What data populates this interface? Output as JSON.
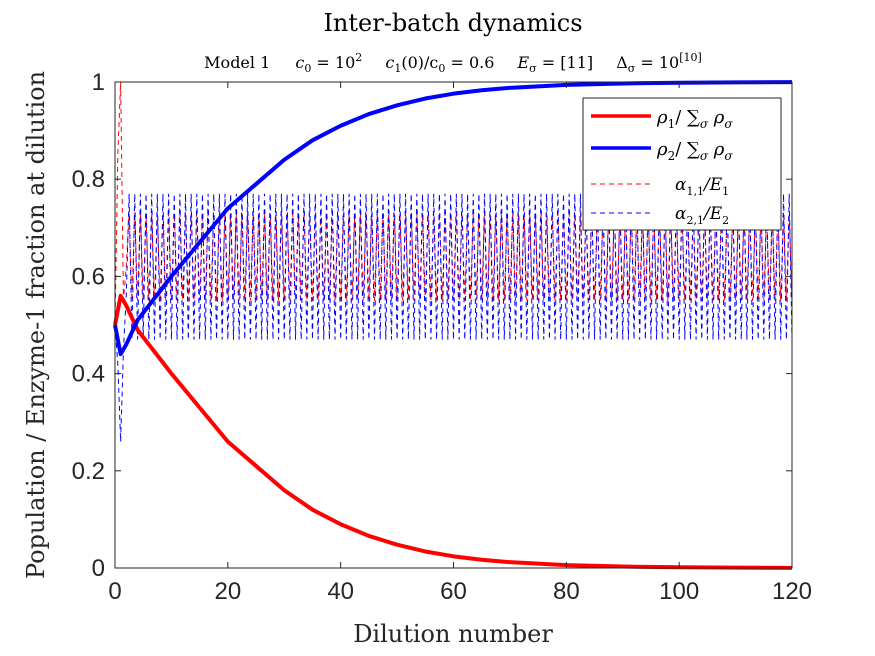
{
  "chart_data": {
    "type": "line",
    "title": "Inter-batch dynamics",
    "subtitle": {
      "model": "Model 1",
      "c0_label": "c",
      "c0_sub": "0",
      "c0_eq": " = 10",
      "c0_exp": "2",
      "c1_label": "c",
      "c1_sub": "1",
      "c1_mid": "(0)/c",
      "c1_sub2": "0",
      "c1_eq": " = 0.6",
      "E_label": "E",
      "E_sub": "σ",
      "E_eq": " = [11]",
      "D_label": "Δ",
      "D_sub": "σ",
      "D_eq": " = 10",
      "D_exp": "[10]"
    },
    "xlabel": "Dilution number",
    "ylabel": "Population / Enzyme-1 fraction at dilution",
    "xlim": [
      0,
      120
    ],
    "ylim": [
      0,
      1
    ],
    "xticks": [
      0,
      20,
      40,
      60,
      80,
      100,
      120
    ],
    "xtick_labels": [
      "0",
      "20",
      "40",
      "60",
      "80",
      "100",
      "120"
    ],
    "yticks": [
      0,
      0.2,
      0.4,
      0.6,
      0.8,
      1
    ],
    "ytick_labels": [
      "0",
      "0.2",
      "0.4",
      "0.6",
      "0.8",
      "1"
    ],
    "grid": false,
    "legend_position": "top-right",
    "series": [
      {
        "legend": {
          "a": "ρ",
          "a_sub": "1",
          "b": "/ ∑",
          "b_sub": "σ",
          "c": " ρ",
          "c_sub": "σ"
        },
        "color": "#ff0000",
        "style": "solid",
        "x": [
          0,
          1,
          2,
          4,
          6,
          8,
          10,
          15,
          20,
          25,
          30,
          35,
          40,
          45,
          50,
          55,
          60,
          65,
          70,
          80,
          90,
          100,
          110,
          120
        ],
        "values": [
          0.5,
          0.56,
          0.54,
          0.49,
          0.46,
          0.43,
          0.4,
          0.33,
          0.26,
          0.21,
          0.16,
          0.12,
          0.09,
          0.066,
          0.048,
          0.034,
          0.024,
          0.017,
          0.012,
          0.006,
          0.003,
          0.0015,
          0.0007,
          0.0003
        ]
      },
      {
        "legend": {
          "a": "ρ",
          "a_sub": "2",
          "b": "/ ∑",
          "b_sub": "σ",
          "c": " ρ",
          "c_sub": "σ"
        },
        "color": "#0000ff",
        "style": "solid",
        "x": [
          0,
          1,
          2,
          4,
          6,
          8,
          10,
          15,
          20,
          25,
          30,
          35,
          40,
          45,
          50,
          55,
          60,
          65,
          70,
          80,
          90,
          100,
          110,
          120
        ],
        "values": [
          0.5,
          0.44,
          0.46,
          0.51,
          0.54,
          0.57,
          0.6,
          0.67,
          0.74,
          0.79,
          0.84,
          0.88,
          0.91,
          0.934,
          0.952,
          0.966,
          0.976,
          0.983,
          0.988,
          0.994,
          0.997,
          0.9985,
          0.9993,
          0.9997
        ]
      },
      {
        "legend": {
          "a": "α",
          "a_sub": "1,1",
          "b": "/E",
          "b_sub": "1"
        },
        "color": "#ff0000",
        "style": "dashed",
        "oscillating": true,
        "start": [
          [
            0,
            0.5
          ],
          [
            0.5,
            0.85
          ],
          [
            1,
            1.0
          ],
          [
            1.5,
            0.55
          ],
          [
            2,
            0.62
          ]
        ],
        "high": 0.73,
        "low": 0.55
      },
      {
        "legend": {
          "a": "α",
          "a_sub": "2,1",
          "b": "/E",
          "b_sub": "2"
        },
        "color": "#0000ff",
        "style": "dashed",
        "oscillating": true,
        "start": [
          [
            0,
            0.5
          ],
          [
            0.5,
            0.42
          ],
          [
            1,
            0.26
          ],
          [
            1.5,
            0.45
          ],
          [
            2,
            0.56
          ]
        ],
        "high": 0.77,
        "low": 0.47
      }
    ]
  }
}
